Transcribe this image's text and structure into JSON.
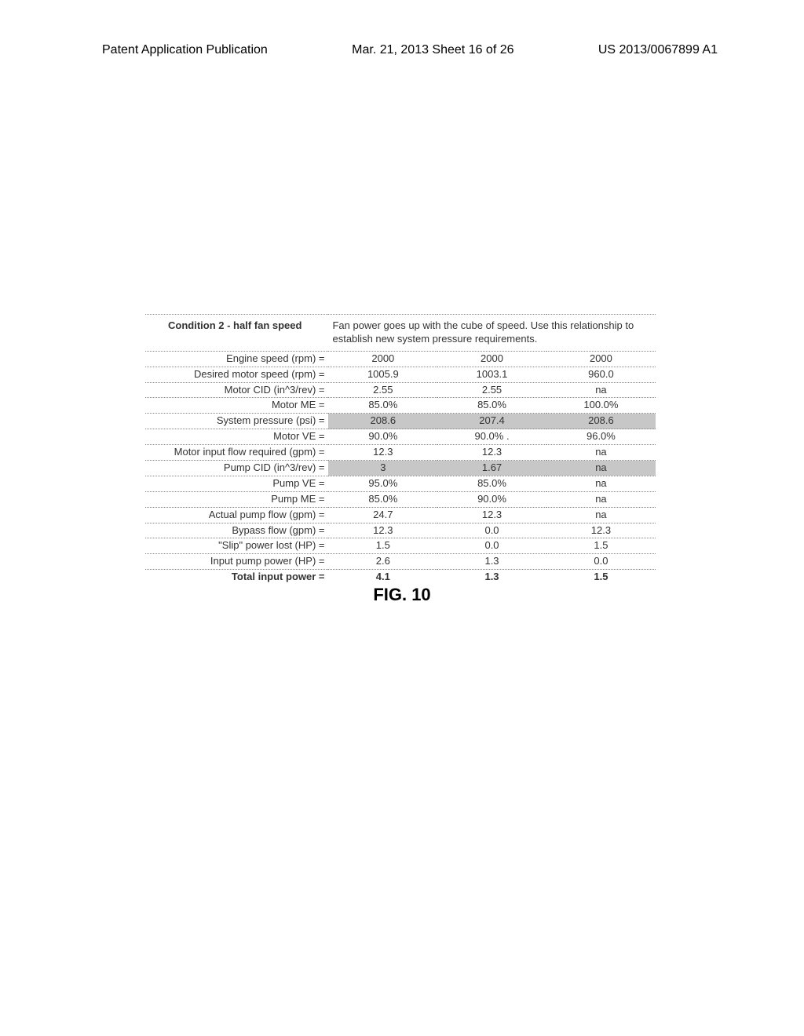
{
  "header": {
    "left": "Patent Application Publication",
    "center": "Mar. 21, 2013  Sheet 16 of 26",
    "right": "US 2013/0067899 A1"
  },
  "table": {
    "title": "Condition 2 - half fan speed",
    "description": "Fan power goes up with the cube of speed.  Use this relationship to establish new system pressure requirements.",
    "rows": [
      {
        "label": "Engine speed (rpm) =",
        "v1": "2000",
        "v2": "2000",
        "v3": "2000",
        "shaded": false
      },
      {
        "label": "Desired motor speed (rpm) =",
        "v1": "1005.9",
        "v2": "1003.1",
        "v3": "960.0",
        "shaded": false
      },
      {
        "label": "Motor CID (in^3/rev) =",
        "v1": "2.55",
        "v2": "2.55",
        "v3": "na",
        "shaded": false
      },
      {
        "label": "Motor ME =",
        "v1": "85.0%",
        "v2": "85.0%",
        "v3": "100.0%",
        "shaded": false
      },
      {
        "label": "System pressure (psi) =",
        "v1": "208.6",
        "v2": "207.4",
        "v3": "208.6",
        "shaded": true
      },
      {
        "label": "Motor VE =",
        "v1": "90.0%",
        "v2": "90.0% .",
        "v3": "96.0%",
        "shaded": false
      },
      {
        "label": "Motor input flow required (gpm) =",
        "v1": "12.3",
        "v2": "12.3",
        "v3": "na",
        "shaded": false
      },
      {
        "label": "Pump CID (in^3/rev) =",
        "v1": "3",
        "v2": "1.67",
        "v3": "na",
        "shaded": true
      },
      {
        "label": "Pump VE =",
        "v1": "95.0%",
        "v2": "85.0%",
        "v3": "na",
        "shaded": false
      },
      {
        "label": "Pump ME =",
        "v1": "85.0%",
        "v2": "90.0%",
        "v3": "na",
        "shaded": false
      },
      {
        "label": "Actual pump flow (gpm) =",
        "v1": "24.7",
        "v2": "12.3",
        "v3": "na",
        "shaded": false
      },
      {
        "label": "Bypass flow (gpm) =",
        "v1": "12.3",
        "v2": "0.0",
        "v3": "12.3",
        "shaded": false
      },
      {
        "label": "\"Slip\" power lost (HP) =",
        "v1": "1.5",
        "v2": "0.0",
        "v3": "1.5",
        "shaded": false
      },
      {
        "label": "Input pump power (HP) =",
        "v1": "2.6",
        "v2": "1.3",
        "v3": "0.0",
        "shaded": false
      }
    ],
    "total": {
      "label": "Total input power =",
      "v1": "4.1",
      "v2": "1.3",
      "v3": "1.5"
    }
  },
  "caption": "FIG. 10",
  "style": {
    "shaded_bg": "#c7c7c7",
    "border_color": "#888888",
    "text_color": "#333333",
    "title_fontsize": 13,
    "caption_fontsize": 22
  }
}
